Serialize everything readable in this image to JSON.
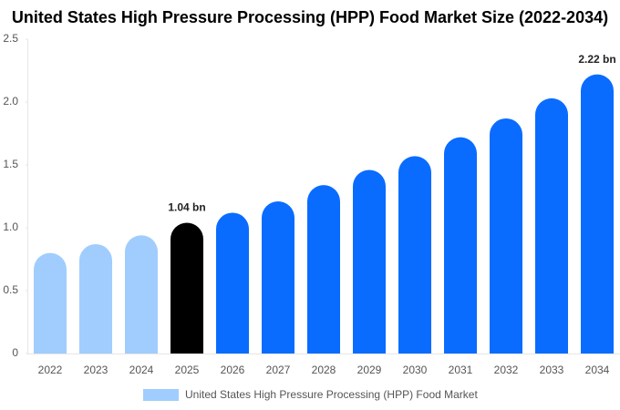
{
  "chart_data": {
    "type": "bar",
    "title": "United States High Pressure Processing (HPP) Food Market Size (2022-2034)",
    "categories": [
      "2022",
      "2023",
      "2024",
      "2025",
      "2026",
      "2027",
      "2028",
      "2029",
      "2030",
      "2031",
      "2032",
      "2033",
      "2034"
    ],
    "series": [
      {
        "name": "United States High Pressure Processing (HPP) Food Market",
        "color": "#a0cdfd",
        "values": [
          0.8,
          0.87,
          0.94,
          1.04,
          1.12,
          1.21,
          1.34,
          1.46,
          1.57,
          1.72,
          1.87,
          2.03,
          2.22
        ],
        "bar_colors": [
          "#a0cdfd",
          "#a0cdfd",
          "#a0cdfd",
          "#000000",
          "#0a6cff",
          "#0a6cff",
          "#0a6cff",
          "#0a6cff",
          "#0a6cff",
          "#0a6cff",
          "#0a6cff",
          "#0a6cff",
          "#0a6cff"
        ],
        "value_labels": [
          null,
          null,
          null,
          "1.04 bn",
          null,
          null,
          null,
          null,
          null,
          null,
          null,
          null,
          "2.22 bn"
        ]
      }
    ],
    "ylim": [
      0,
      2.5
    ],
    "yticks": [
      0,
      0.5,
      {
        "value": 1,
        "label": "1.0"
      },
      1.5,
      {
        "value": 2,
        "label": "2.0"
      },
      2.5
    ],
    "grid": false
  }
}
